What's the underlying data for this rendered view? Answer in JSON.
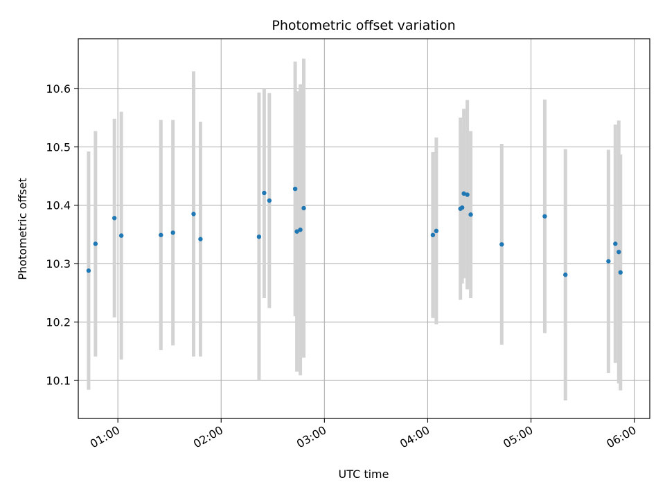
{
  "chart_data": {
    "type": "scatter",
    "title": "Photometric offset variation",
    "xlabel": "UTC time",
    "ylabel": "Photometric offset",
    "x_unit": "UTC time (HH:MM)",
    "xlim": [
      "00:37",
      "06:09"
    ],
    "ylim": [
      10.035,
      10.685
    ],
    "xticks": [
      "01:00",
      "02:00",
      "03:00",
      "04:00",
      "05:00",
      "06:00"
    ],
    "yticks": [
      10.1,
      10.2,
      10.3,
      10.4,
      10.5,
      10.6
    ],
    "ytick_labels": [
      "10.1",
      "10.2",
      "10.3",
      "10.4",
      "10.5",
      "10.6"
    ],
    "grid": true,
    "point_color": "#1f77b4",
    "errorbar_color": "#d3d3d3",
    "points": [
      {
        "x": "00:43",
        "y": 10.288,
        "err": 0.204
      },
      {
        "x": "00:47",
        "y": 10.334,
        "err": 0.193
      },
      {
        "x": "00:58",
        "y": 10.378,
        "err": 0.17
      },
      {
        "x": "01:02",
        "y": 10.348,
        "err": 0.212
      },
      {
        "x": "01:25",
        "y": 10.349,
        "err": 0.197
      },
      {
        "x": "01:32",
        "y": 10.353,
        "err": 0.193
      },
      {
        "x": "01:44",
        "y": 10.385,
        "err": 0.244
      },
      {
        "x": "01:48",
        "y": 10.342,
        "err": 0.201
      },
      {
        "x": "02:22",
        "y": 10.346,
        "err": 0.247
      },
      {
        "x": "02:25",
        "y": 10.421,
        "err": 0.18
      },
      {
        "x": "02:28",
        "y": 10.408,
        "err": 0.184
      },
      {
        "x": "02:43",
        "y": 10.428,
        "err": 0.218
      },
      {
        "x": "02:44",
        "y": 10.355,
        "err": 0.24
      },
      {
        "x": "02:46",
        "y": 10.358,
        "err": 0.249
      },
      {
        "x": "02:48",
        "y": 10.395,
        "err": 0.256
      },
      {
        "x": "04:03",
        "y": 10.349,
        "err": 0.142
      },
      {
        "x": "04:05",
        "y": 10.356,
        "err": 0.16
      },
      {
        "x": "04:19",
        "y": 10.394,
        "err": 0.156
      },
      {
        "x": "04:20",
        "y": 10.396,
        "err": 0.13
      },
      {
        "x": "04:21",
        "y": 10.42,
        "err": 0.145
      },
      {
        "x": "04:23",
        "y": 10.418,
        "err": 0.162
      },
      {
        "x": "04:25",
        "y": 10.384,
        "err": 0.143
      },
      {
        "x": "04:43",
        "y": 10.333,
        "err": 0.172
      },
      {
        "x": "05:08",
        "y": 10.381,
        "err": 0.2
      },
      {
        "x": "05:20",
        "y": 10.281,
        "err": 0.215
      },
      {
        "x": "05:45",
        "y": 10.304,
        "err": 0.191
      },
      {
        "x": "05:49",
        "y": 10.334,
        "err": 0.204
      },
      {
        "x": "05:51",
        "y": 10.32,
        "err": 0.225
      },
      {
        "x": "05:52",
        "y": 10.285,
        "err": 0.202
      }
    ]
  }
}
